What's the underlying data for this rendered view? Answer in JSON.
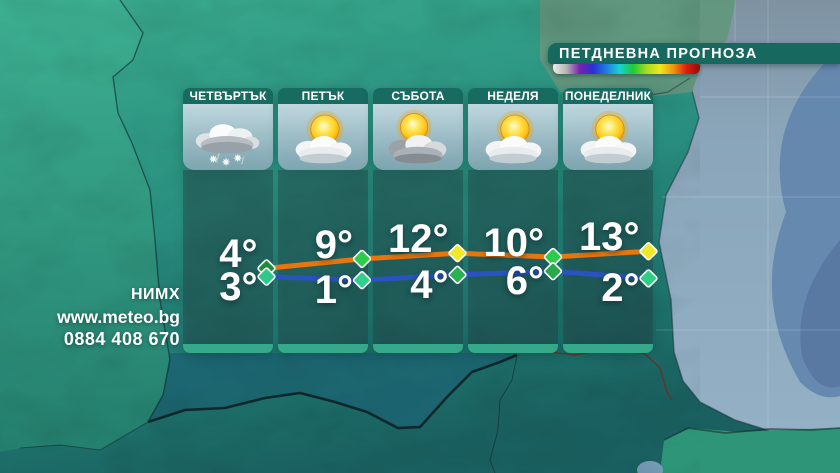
{
  "title_bar": {
    "label": "ПЕТДНЕВНА ПРОГНОЗА"
  },
  "legend": {
    "gradient_colors": [
      "#ececec",
      "#b5b5b5",
      "#7a20b0",
      "#2b2fd4",
      "#1f7ee0",
      "#19d2d2",
      "#1fca35",
      "#a6dc20",
      "#efe81f",
      "#f09410",
      "#dc1d0f",
      "#8c0d0d"
    ]
  },
  "days": [
    {
      "label": "ЧЕТВЪРТЪК",
      "icon": "snow"
    },
    {
      "label": "ПЕТЪК",
      "icon": "sun-cloud"
    },
    {
      "label": "СЪБОТА",
      "icon": "sun-dark-cloud"
    },
    {
      "label": "НЕДЕЛЯ",
      "icon": "sun-cloud"
    },
    {
      "label": "ПОНЕДЕЛНИК",
      "icon": "sun-cloud"
    }
  ],
  "chart_data": {
    "type": "line",
    "title": "ПЕТДНЕВНА ПРОГНОЗА",
    "categories": [
      "ЧЕТВЪРТЪК",
      "ПЕТЪК",
      "СЪБОТА",
      "НЕДЕЛЯ",
      "ПОНЕДЕЛНИК"
    ],
    "unit": "°C",
    "legend_position": "none",
    "grid": false,
    "series": [
      {
        "name": "high",
        "color": "#e8750e",
        "values": [
          4,
          9,
          12,
          10,
          13
        ],
        "marker_colors": [
          "#1e8c3a",
          "#2ccc4a",
          "#f0e82a",
          "#2ccc4a",
          "#f0e82a"
        ]
      },
      {
        "name": "low",
        "color": "#2a52c0",
        "values": [
          3,
          1,
          4,
          6,
          2
        ],
        "marker_colors": [
          "#2dc98c",
          "#30cf8e",
          "#2bb052",
          "#29a94a",
          "#2fce85"
        ]
      }
    ]
  },
  "contact": {
    "org": "НИМХ",
    "website": "www.meteo.bg",
    "phone": "0884 408 670"
  },
  "colors": {
    "header_teal": "#17695f",
    "footer_strip": "#36a98a",
    "map_land": "#2a9181",
    "sea": "#8ea9bd",
    "high_line": "#e8750e",
    "low_line": "#2a52c0"
  }
}
